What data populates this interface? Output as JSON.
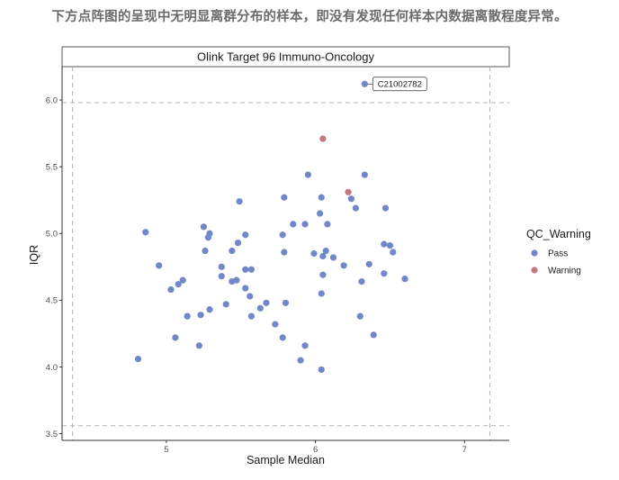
{
  "caption": "下方点阵图的呈现中无明显离群分布的样本，即没有发现任何样本内数据离散程度异常。",
  "chart_data": {
    "type": "scatter",
    "panel_title": "Olink Target 96 Immuno-Oncology",
    "xlabel": "Sample Median",
    "ylabel": "IQR",
    "xlim": [
      4.3,
      7.3
    ],
    "ylim": [
      3.45,
      6.25
    ],
    "x_ticks": [
      5,
      6,
      7
    ],
    "y_ticks": [
      3.5,
      4.0,
      4.5,
      5.0,
      5.5,
      6.0
    ],
    "x_tick_labels": [
      "5",
      "6",
      "7"
    ],
    "y_tick_labels": [
      "3.5",
      "4.0",
      "4.5",
      "5.0",
      "5.5",
      "6.0"
    ],
    "thresholds": {
      "x": [
        4.37,
        7.17
      ],
      "y": [
        3.56,
        5.98
      ]
    },
    "grid": false,
    "legend": {
      "title": "QC_Warning",
      "position": "right",
      "items": [
        {
          "label": "Pass",
          "color": "#7087CA"
        },
        {
          "label": "Warning",
          "color": "#C47A7A"
        }
      ]
    },
    "annotation": {
      "text": "C21002782",
      "x": 6.33,
      "y": 6.12
    },
    "series": [
      {
        "name": "Pass",
        "color": "#7087CA",
        "points": [
          [
            6.33,
            6.12
          ],
          [
            5.95,
            5.44
          ],
          [
            6.33,
            5.44
          ],
          [
            5.49,
            5.24
          ],
          [
            5.79,
            5.27
          ],
          [
            6.04,
            5.27
          ],
          [
            6.24,
            5.26
          ],
          [
            6.27,
            5.19
          ],
          [
            6.47,
            5.19
          ],
          [
            6.03,
            5.15
          ],
          [
            5.85,
            5.07
          ],
          [
            5.93,
            5.07
          ],
          [
            6.08,
            5.07
          ],
          [
            5.25,
            5.05
          ],
          [
            4.86,
            5.01
          ],
          [
            5.29,
            5.0
          ],
          [
            5.28,
            4.97
          ],
          [
            5.53,
            4.99
          ],
          [
            5.78,
            4.99
          ],
          [
            5.48,
            4.93
          ],
          [
            6.46,
            4.92
          ],
          [
            6.5,
            4.91
          ],
          [
            5.26,
            4.87
          ],
          [
            5.44,
            4.87
          ],
          [
            5.79,
            4.86
          ],
          [
            5.99,
            4.85
          ],
          [
            6.52,
            4.86
          ],
          [
            6.07,
            4.87
          ],
          [
            6.05,
            4.83
          ],
          [
            6.12,
            4.82
          ],
          [
            4.95,
            4.76
          ],
          [
            5.37,
            4.75
          ],
          [
            5.53,
            4.73
          ],
          [
            5.57,
            4.73
          ],
          [
            6.19,
            4.76
          ],
          [
            6.36,
            4.77
          ],
          [
            6.05,
            4.69
          ],
          [
            6.46,
            4.7
          ],
          [
            5.11,
            4.65
          ],
          [
            5.37,
            4.68
          ],
          [
            5.44,
            4.64
          ],
          [
            5.47,
            4.65
          ],
          [
            6.31,
            4.64
          ],
          [
            6.6,
            4.66
          ],
          [
            5.08,
            4.62
          ],
          [
            5.03,
            4.58
          ],
          [
            5.53,
            4.59
          ],
          [
            5.56,
            4.53
          ],
          [
            6.04,
            4.55
          ],
          [
            5.8,
            4.48
          ],
          [
            5.67,
            4.48
          ],
          [
            5.4,
            4.47
          ],
          [
            5.63,
            4.44
          ],
          [
            5.29,
            4.43
          ],
          [
            5.23,
            4.39
          ],
          [
            5.14,
            4.38
          ],
          [
            5.57,
            4.38
          ],
          [
            6.3,
            4.38
          ],
          [
            5.73,
            4.32
          ],
          [
            5.78,
            4.22
          ],
          [
            6.39,
            4.24
          ],
          [
            5.06,
            4.22
          ],
          [
            5.22,
            4.16
          ],
          [
            5.93,
            4.16
          ],
          [
            4.81,
            4.06
          ],
          [
            5.9,
            4.05
          ],
          [
            6.04,
            3.98
          ]
        ]
      },
      {
        "name": "Warning",
        "color": "#C47A7A",
        "points": [
          [
            6.05,
            5.71
          ],
          [
            6.22,
            5.31
          ]
        ]
      }
    ]
  }
}
